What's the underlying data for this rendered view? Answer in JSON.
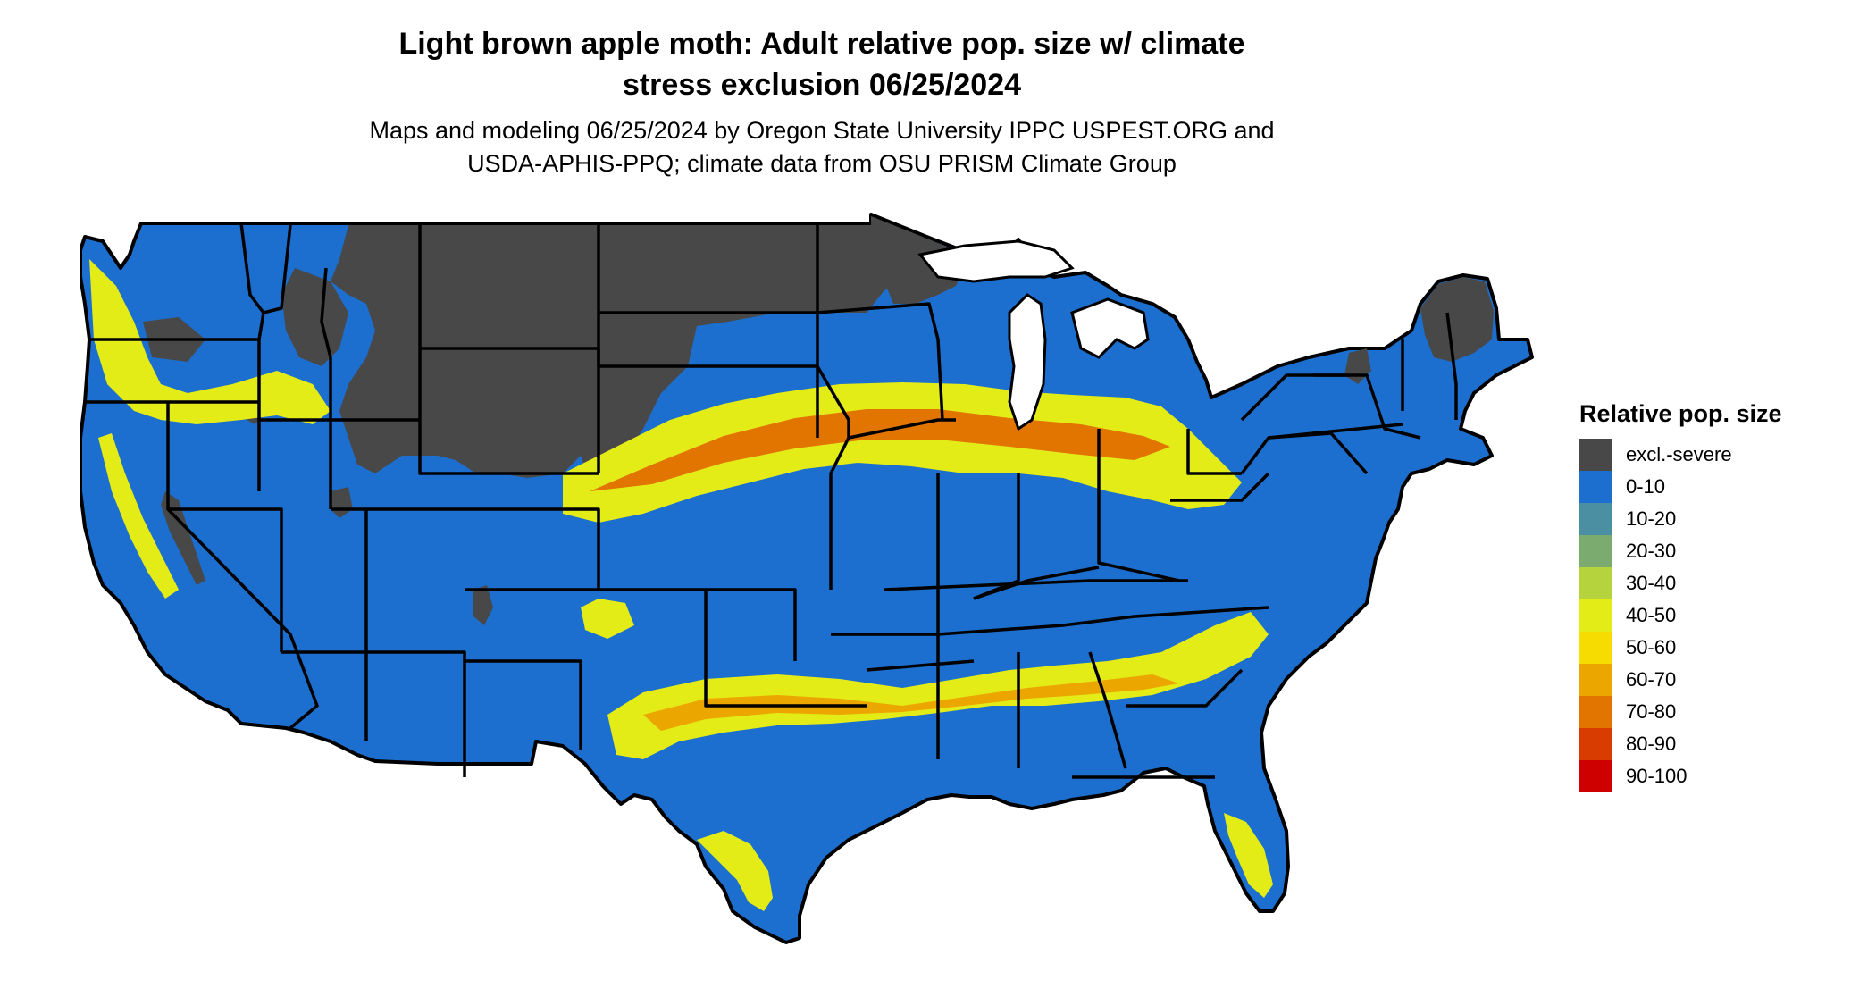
{
  "header": {
    "title_line1": "Light brown apple moth: Adult relative pop. size w/ climate",
    "title_line2": "stress exclusion 06/25/2024",
    "subtitle_line1": "Maps and modeling 06/25/2024 by Oregon State University IPPC USPEST.ORG and",
    "subtitle_line2": "USDA-APHIS-PPQ; climate data from OSU PRISM Climate Group"
  },
  "legend": {
    "title": "Relative pop. size",
    "items": [
      {
        "label": "excl.-severe",
        "color": "#484848"
      },
      {
        "label": "0-10",
        "color": "#1c6fce"
      },
      {
        "label": "10-20",
        "color": "#4a8fa2"
      },
      {
        "label": "20-30",
        "color": "#7bab6e"
      },
      {
        "label": "30-40",
        "color": "#b4d33c"
      },
      {
        "label": "40-50",
        "color": "#e3ec16"
      },
      {
        "label": "50-60",
        "color": "#f7dc00"
      },
      {
        "label": "60-70",
        "color": "#eca600"
      },
      {
        "label": "70-80",
        "color": "#e27400"
      },
      {
        "label": "80-90",
        "color": "#d93c00"
      },
      {
        "label": "90-100",
        "color": "#cf0000"
      }
    ]
  }
}
